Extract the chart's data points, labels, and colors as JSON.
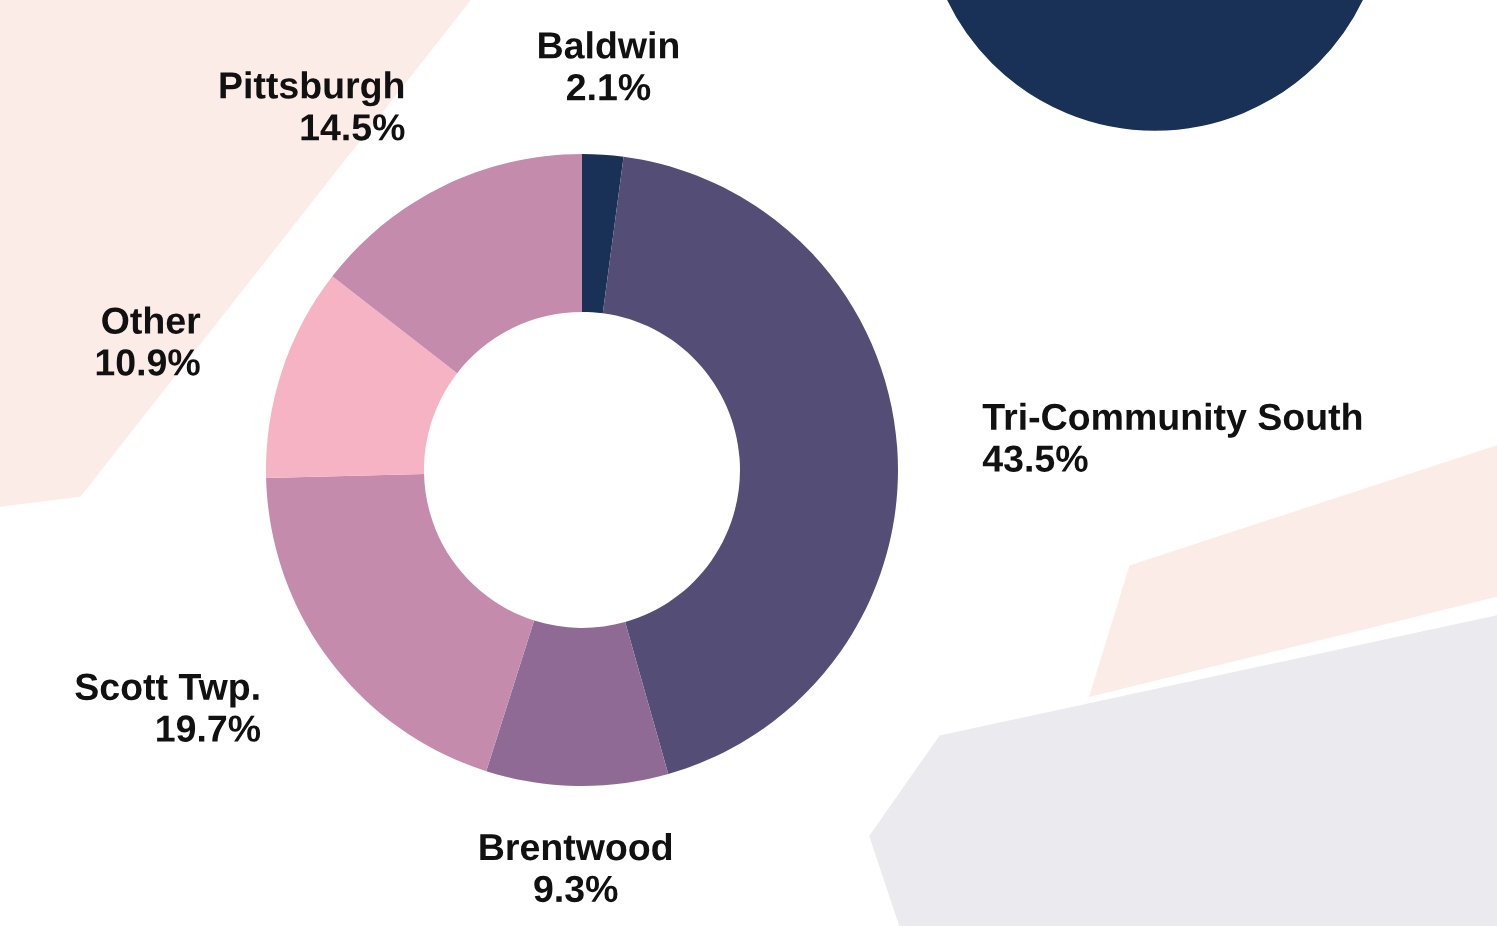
{
  "chart_data": {
    "type": "donut",
    "categories": [
      "Baldwin",
      "Tri-Community South",
      "Brentwood",
      "Scott Twp.",
      "Other",
      "Pittsburgh"
    ],
    "values": [
      2.1,
      43.5,
      9.3,
      19.7,
      10.9,
      14.5
    ],
    "value_labels": [
      "2.1%",
      "43.5%",
      "9.3%",
      "19.7%",
      "10.9%",
      "14.5%"
    ],
    "colors": [
      "#1a3157",
      "#544d75",
      "#8f6a95",
      "#c48bac",
      "#f6b3c3",
      "#c48bac"
    ],
    "legend": false
  }
}
